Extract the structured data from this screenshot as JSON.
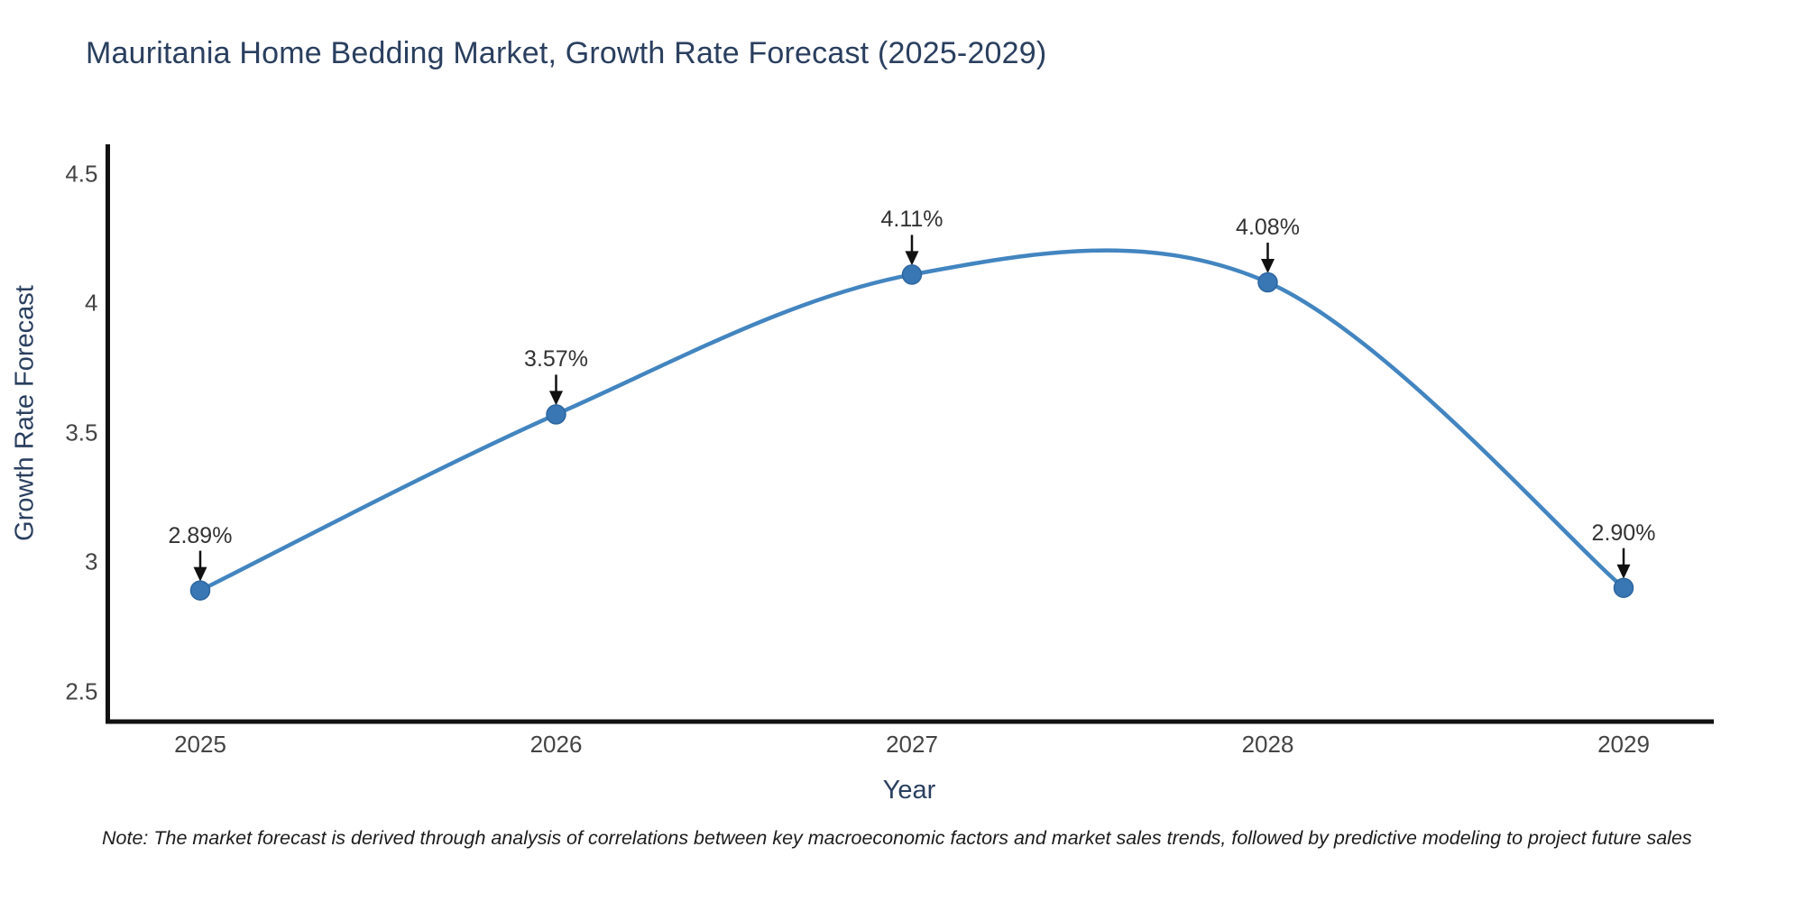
{
  "page": {
    "note": "Note: The market forecast is derived through analysis of correlations between key macroeconomic factors and market sales trends, followed by predictive modeling to project future sales"
  },
  "chart_data": {
    "type": "line",
    "title": "Mauritania Home Bedding Market, Growth Rate Forecast (2025-2029)",
    "xlabel": "Year",
    "ylabel": "Growth Rate Forecast",
    "x": [
      2025,
      2026,
      2027,
      2028,
      2029
    ],
    "series": [
      {
        "name": "Growth Rate Forecast",
        "values": [
          2.89,
          3.57,
          4.11,
          4.08,
          2.9
        ]
      }
    ],
    "point_labels": [
      "2.89%",
      "3.57%",
      "4.11%",
      "4.08%",
      "2.90%"
    ],
    "xtick_labels": [
      "2025",
      "2026",
      "2027",
      "2028",
      "2029"
    ],
    "ytick_values": [
      2.5,
      3.0,
      3.5,
      4.0,
      4.5
    ],
    "ytick_labels": [
      "2.5",
      "3",
      "3.5",
      "4",
      "4.5"
    ],
    "ylim": [
      2.38,
      4.61
    ],
    "xlim": [
      2024.73,
      2029.25
    ],
    "grid": false,
    "legend": "none",
    "curve": "spline",
    "annotation_style": "percent value labels with downward black arrows above each data point",
    "colors": {
      "line": "#4285c0",
      "marker": "#3876b4",
      "marker_edge": "#2d669f",
      "axis": "#111111",
      "arrow": "#111111",
      "title_text": "#2a3f5f",
      "tick_text": "#444444",
      "annotation_text": "#333333",
      "note_text": "#1c1c1c"
    }
  }
}
